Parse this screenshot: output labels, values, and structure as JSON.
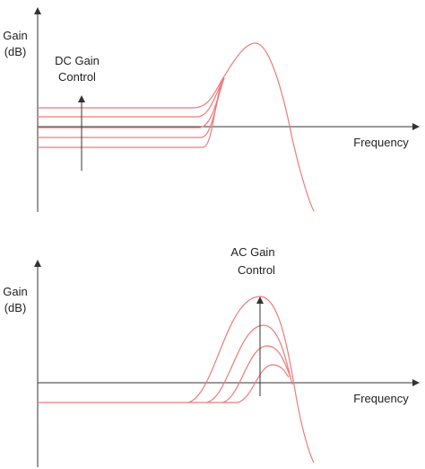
{
  "top": {
    "y_label": [
      "Gain",
      "(dB)"
    ],
    "control_label": [
      "DC Gain",
      "Control"
    ],
    "x_label": "Frequency"
  },
  "bottom": {
    "y_label": [
      "Gain",
      "(dB)"
    ],
    "control_label": [
      "AC Gain",
      "Control"
    ],
    "x_label": "Frequency"
  }
}
